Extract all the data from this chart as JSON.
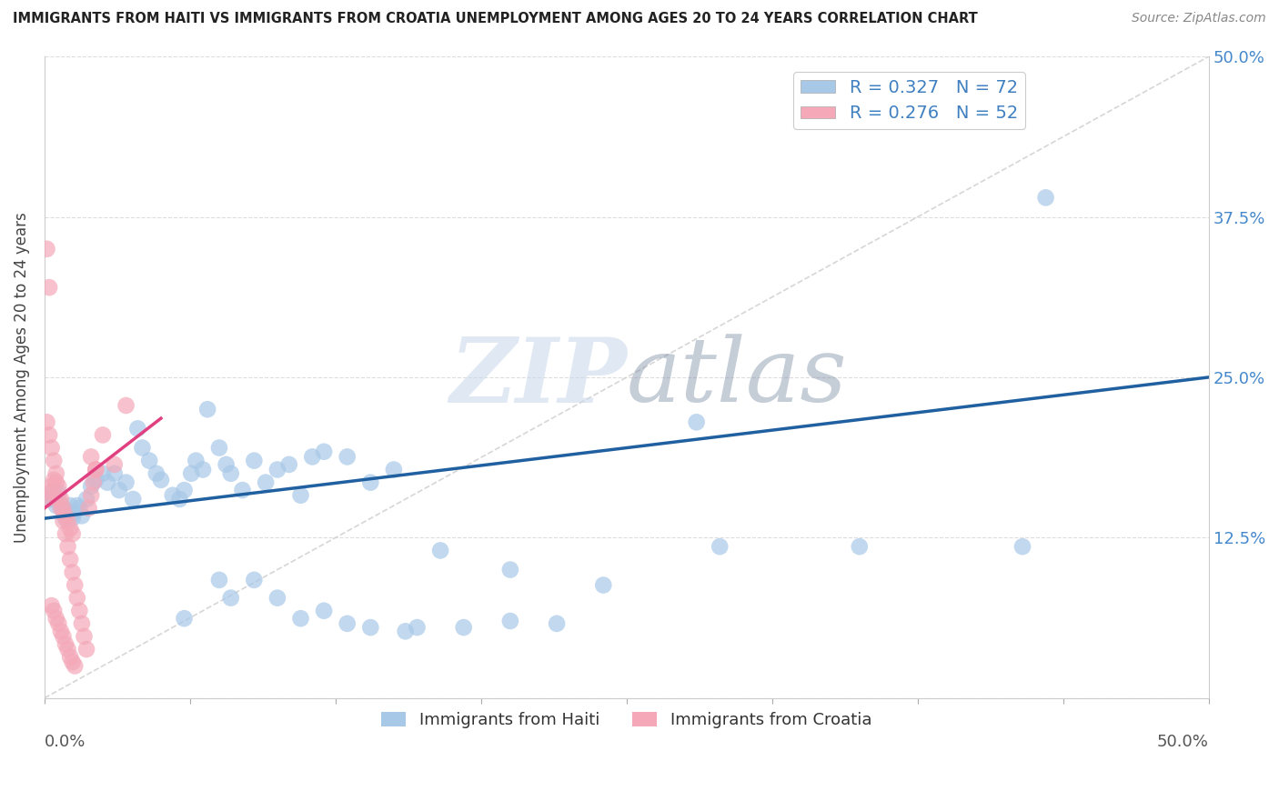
{
  "title": "IMMIGRANTS FROM HAITI VS IMMIGRANTS FROM CROATIA UNEMPLOYMENT AMONG AGES 20 TO 24 YEARS CORRELATION CHART",
  "source": "Source: ZipAtlas.com",
  "ylabel": "Unemployment Among Ages 20 to 24 years",
  "xlim": [
    0.0,
    0.5
  ],
  "ylim": [
    0.0,
    0.5
  ],
  "xticks": [
    0.0,
    0.0625,
    0.125,
    0.1875,
    0.25,
    0.3125,
    0.375,
    0.4375,
    0.5
  ],
  "yticks": [
    0.0,
    0.125,
    0.25,
    0.375,
    0.5
  ],
  "right_ytick_labels": [
    "",
    "12.5%",
    "25.0%",
    "37.5%",
    "50.0%"
  ],
  "haiti_R": 0.327,
  "haiti_N": 72,
  "croatia_R": 0.276,
  "croatia_N": 52,
  "haiti_color": "#a8c8e8",
  "croatia_color": "#f4a8b8",
  "haiti_line_color": "#2060a0",
  "croatia_line_color": "#e04080",
  "diag_color": "#cccccc",
  "watermark": "ZIPatlas",
  "watermark_zip_color": "#c0d0e0",
  "watermark_atlas_color": "#8090a0",
  "background_color": "#ffffff",
  "grid_color": "#dddddd",
  "legend_label_color": "#4080c0",
  "bottom_legend_labels": [
    "Immigrants from Haiti",
    "Immigrants from Croatia"
  ],
  "haiti_x": [
    0.002,
    0.003,
    0.004,
    0.005,
    0.006,
    0.007,
    0.008,
    0.009,
    0.01,
    0.011,
    0.012,
    0.013,
    0.014,
    0.015,
    0.016,
    0.018,
    0.02,
    0.022,
    0.025,
    0.027,
    0.03,
    0.032,
    0.035,
    0.038,
    0.04,
    0.042,
    0.045,
    0.048,
    0.05,
    0.055,
    0.058,
    0.06,
    0.063,
    0.065,
    0.068,
    0.07,
    0.075,
    0.078,
    0.08,
    0.085,
    0.09,
    0.095,
    0.1,
    0.105,
    0.11,
    0.115,
    0.12,
    0.13,
    0.14,
    0.15,
    0.06,
    0.075,
    0.08,
    0.09,
    0.1,
    0.11,
    0.12,
    0.13,
    0.14,
    0.155,
    0.17,
    0.2,
    0.24,
    0.28,
    0.35,
    0.42,
    0.43,
    0.29,
    0.16,
    0.18,
    0.2,
    0.22
  ],
  "haiti_y": [
    0.155,
    0.16,
    0.155,
    0.15,
    0.16,
    0.15,
    0.145,
    0.14,
    0.145,
    0.15,
    0.14,
    0.145,
    0.15,
    0.148,
    0.142,
    0.155,
    0.165,
    0.17,
    0.175,
    0.168,
    0.175,
    0.162,
    0.168,
    0.155,
    0.21,
    0.195,
    0.185,
    0.175,
    0.17,
    0.158,
    0.155,
    0.162,
    0.175,
    0.185,
    0.178,
    0.225,
    0.195,
    0.182,
    0.175,
    0.162,
    0.185,
    0.168,
    0.178,
    0.182,
    0.158,
    0.188,
    0.192,
    0.188,
    0.168,
    0.178,
    0.062,
    0.092,
    0.078,
    0.092,
    0.078,
    0.062,
    0.068,
    0.058,
    0.055,
    0.052,
    0.115,
    0.1,
    0.088,
    0.215,
    0.118,
    0.118,
    0.39,
    0.118,
    0.055,
    0.055,
    0.06,
    0.058
  ],
  "croatia_x": [
    0.001,
    0.002,
    0.003,
    0.004,
    0.005,
    0.006,
    0.007,
    0.008,
    0.009,
    0.01,
    0.011,
    0.012,
    0.013,
    0.014,
    0.015,
    0.016,
    0.017,
    0.018,
    0.019,
    0.02,
    0.021,
    0.022,
    0.001,
    0.002,
    0.003,
    0.004,
    0.005,
    0.006,
    0.007,
    0.008,
    0.009,
    0.01,
    0.011,
    0.012,
    0.013,
    0.001,
    0.002,
    0.003,
    0.004,
    0.005,
    0.006,
    0.007,
    0.008,
    0.009,
    0.01,
    0.011,
    0.012,
    0.02,
    0.025,
    0.03,
    0.035,
    0.022
  ],
  "croatia_y": [
    0.155,
    0.16,
    0.165,
    0.17,
    0.168,
    0.155,
    0.148,
    0.138,
    0.128,
    0.118,
    0.108,
    0.098,
    0.088,
    0.078,
    0.068,
    0.058,
    0.048,
    0.038,
    0.148,
    0.158,
    0.168,
    0.178,
    0.35,
    0.32,
    0.072,
    0.068,
    0.062,
    0.058,
    0.052,
    0.048,
    0.042,
    0.038,
    0.032,
    0.028,
    0.025,
    0.215,
    0.205,
    0.195,
    0.185,
    0.175,
    0.165,
    0.155,
    0.148,
    0.142,
    0.138,
    0.132,
    0.128,
    0.188,
    0.205,
    0.182,
    0.228,
    0.178
  ]
}
